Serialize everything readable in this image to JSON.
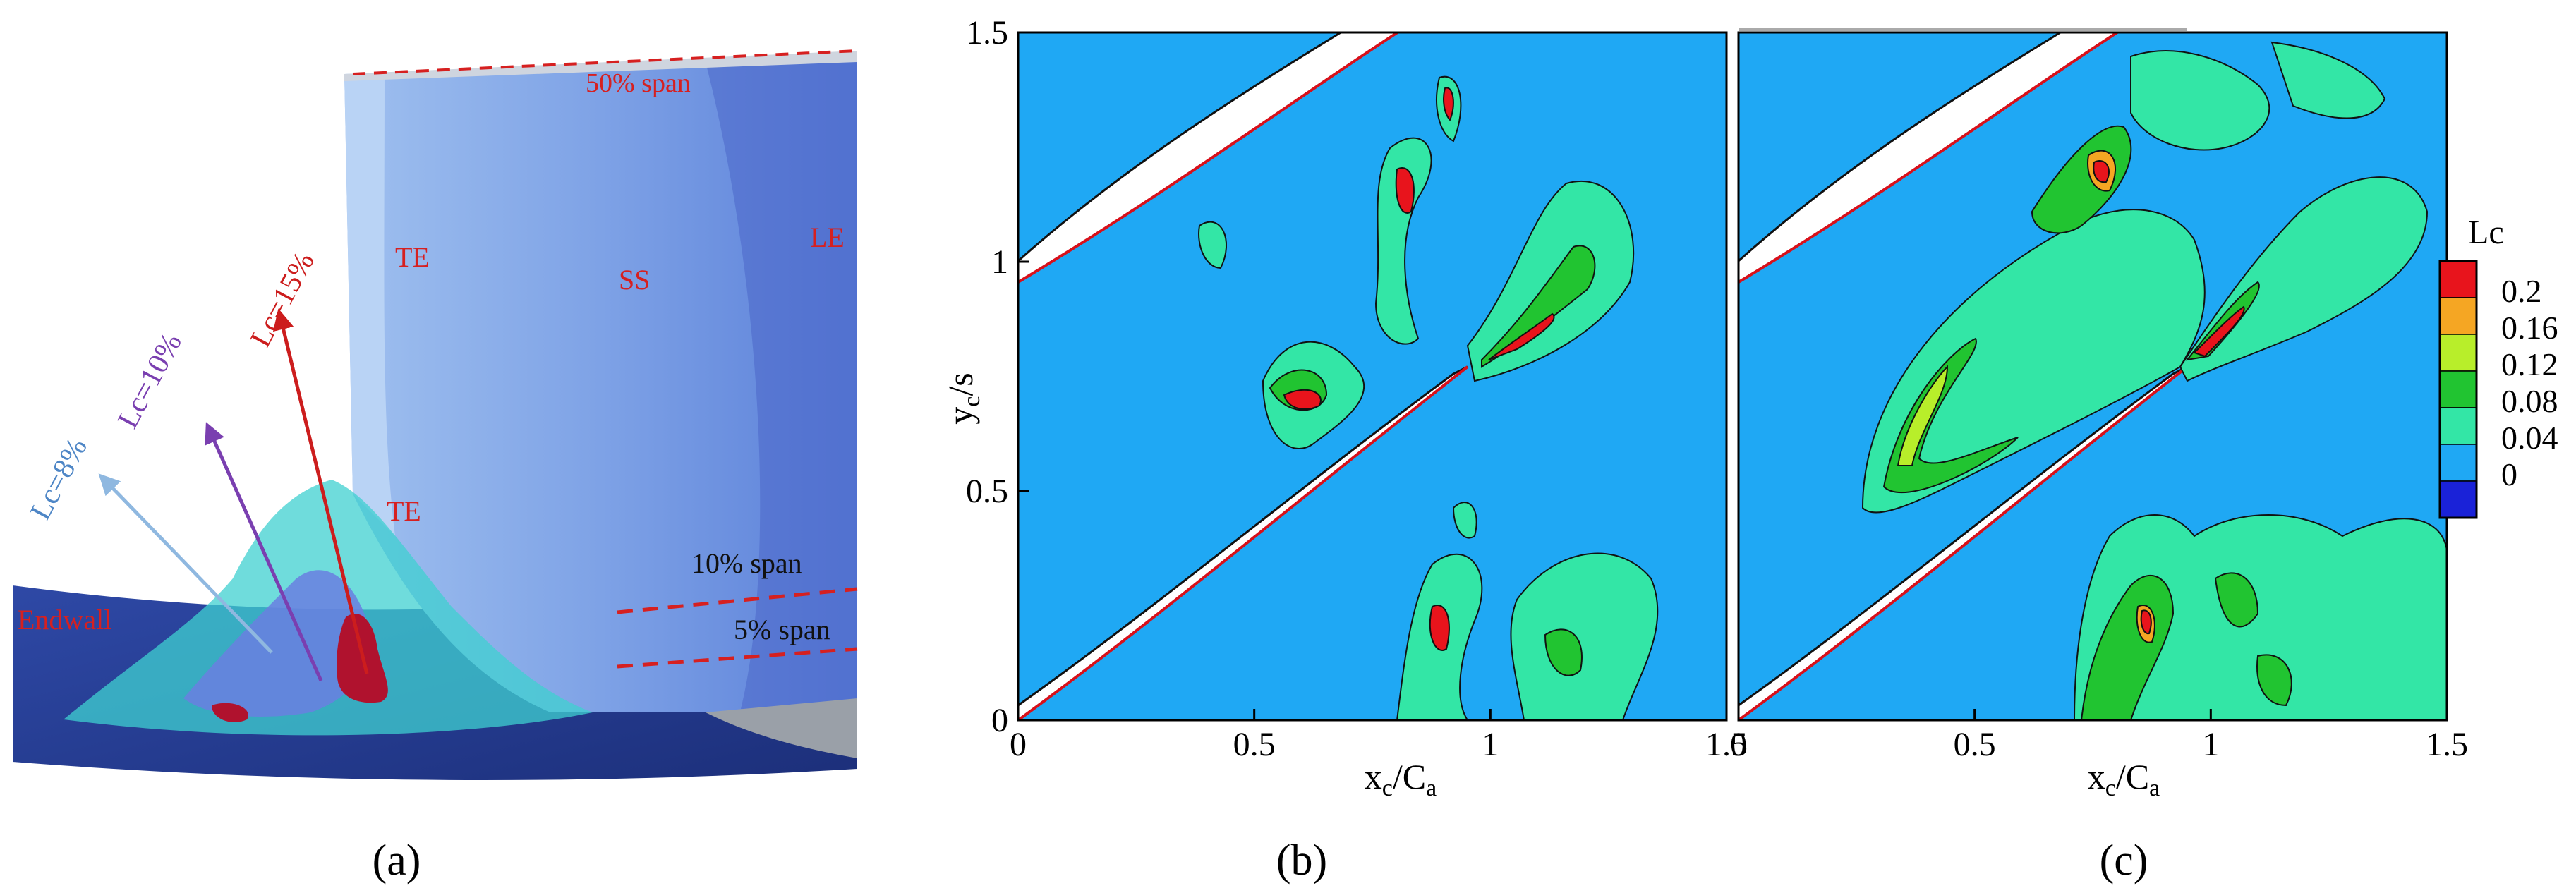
{
  "panel_a": {
    "caption": "(a)",
    "labels": {
      "span50": "50% span",
      "span10": "10% span",
      "span5": "5% span",
      "te_upper": "TE",
      "te_lower": "TE",
      "ss": "SS",
      "le": "LE",
      "endwall": "Endwall",
      "lc8": "Lc=8%",
      "lc10": "Lc=10%",
      "lc15": "Lc=15%"
    },
    "colors": {
      "lc8": "#8fb8e0",
      "lc10": "#7a3fb0",
      "lc15": "#cc1d1d",
      "label_red": "#d62020"
    }
  },
  "panel_b": {
    "caption": "(b)",
    "xlabel": "x_c/C_a",
    "ylabel": "y_c/s",
    "xticks": [
      "0",
      "0.5",
      "1",
      "1.5"
    ],
    "yticks": [
      "0",
      "0.5",
      "1",
      "1.5"
    ]
  },
  "panel_c": {
    "caption": "(c)",
    "xlabel": "x_c/C_a",
    "xticks": [
      "0",
      "0.5",
      "1",
      "1.5"
    ]
  },
  "colorbar": {
    "title": "Lc",
    "levels": [
      "0.2",
      "0.16",
      "0.12",
      "0.08",
      "0.04",
      "0"
    ],
    "colors": [
      "#e8141c",
      "#f5a623",
      "#b8ee2a",
      "#21c431",
      "#33e6a6",
      "#1fa8f4",
      "#1a22d8"
    ]
  },
  "chart_data": [
    {
      "type": "heatmap",
      "title": "",
      "xlabel": "x_c/C_a",
      "ylabel": "y_c/s",
      "xlim": [
        0,
        1.5
      ],
      "ylim": [
        0,
        1.5
      ],
      "grid": false,
      "colorbar_label": "Lc",
      "colorbar_levels": [
        0,
        0.04,
        0.08,
        0.12,
        0.16,
        0.2
      ]
    },
    {
      "type": "heatmap",
      "title": "",
      "xlabel": "x_c/C_a",
      "ylabel": "",
      "xlim": [
        0,
        1.5
      ],
      "ylim": [
        0,
        1.5
      ],
      "grid": false,
      "colorbar_label": "Lc",
      "colorbar_levels": [
        0,
        0.04,
        0.08,
        0.12,
        0.16,
        0.2
      ]
    }
  ]
}
